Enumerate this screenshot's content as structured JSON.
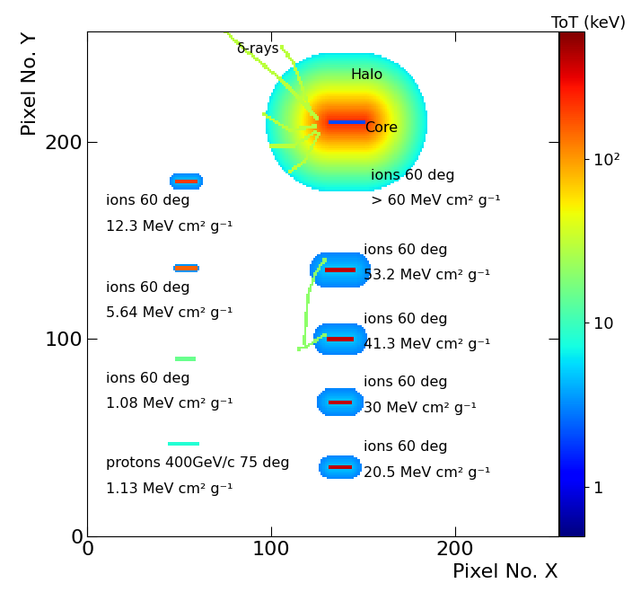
{
  "chart_data": {
    "type": "heatmap",
    "xlabel": "Pixel No. X",
    "ylabel": "Pixel No. Y",
    "colorbar_label": "ToT (keV)",
    "log": true,
    "xlim": [
      0,
      256
    ],
    "ylim": [
      0,
      256
    ],
    "xticks": [
      0,
      100,
      200
    ],
    "yticks": [
      0,
      100,
      200
    ],
    "clim": [
      0.5,
      600
    ],
    "cticks": [
      1,
      10,
      {
        "value": 100,
        "label": "10²"
      }
    ],
    "tracks": [
      {
        "label": [
          "protons 400GeV/c 75 deg",
          "1.13 MeV cm² g⁻¹"
        ],
        "x": [
          45,
          60
        ],
        "y": [
          47,
          47
        ],
        "tot": 8
      },
      {
        "label": [
          "ions 60 deg",
          "1.08 MeV cm² g⁻¹"
        ],
        "x": [
          49,
          58
        ],
        "y": [
          90,
          90
        ],
        "tot": 15
      },
      {
        "label": [
          "ions 60 deg",
          "5.64 MeV cm² g⁻¹"
        ],
        "x": [
          49,
          59
        ],
        "y": [
          136,
          136
        ],
        "tot": 150,
        "halo_radius": 2,
        "halo_tot": [
          5,
          3
        ]
      },
      {
        "label": [
          "ions 60 deg",
          "12.3 MeV cm² g⁻¹"
        ],
        "x": [
          49,
          59
        ],
        "y": [
          180,
          180
        ],
        "tot": 200,
        "halo_radius": 4,
        "halo_tot": [
          5,
          3
        ]
      },
      {
        "label": [
          "ions 60 deg",
          "20.5 MeV cm² g⁻¹"
        ],
        "x": [
          132,
          143
        ],
        "y": [
          35,
          35
        ],
        "tot": 400,
        "halo_radius": 6,
        "halo_tot": [
          5,
          3
        ]
      },
      {
        "label": [
          "ions 60 deg",
          "30 MeV cm² g⁻¹"
        ],
        "x": [
          132,
          143
        ],
        "y": [
          68,
          68
        ],
        "tot": 400,
        "halo_radius": 7,
        "halo_tot": [
          5,
          3
        ]
      },
      {
        "label": [
          "ions 60 deg",
          "41.3 MeV cm² g⁻¹"
        ],
        "x": [
          131,
          144
        ],
        "y": [
          100,
          100
        ],
        "tot": 400,
        "halo_radius": 8,
        "halo_tot": [
          5,
          3
        ],
        "delta_rays": [
          [
            [
              129,
              102
            ],
            [
              124,
              99
            ],
            [
              119,
              96
            ],
            [
              115,
              95
            ]
          ]
        ],
        "delta_tot": 20
      },
      {
        "label": [
          "ions 60 deg",
          "53.2 MeV cm² g⁻¹"
        ],
        "x": [
          130,
          145
        ],
        "y": [
          135,
          135
        ],
        "tot": 400,
        "halo_radius": 9,
        "halo_tot": [
          5,
          3
        ],
        "delta_rays": [
          [
            [
              129,
              140
            ],
            [
              124,
              133
            ],
            [
              120,
              122
            ],
            [
              119,
              110
            ],
            [
              118,
              98
            ]
          ]
        ],
        "delta_tot": 20
      },
      {
        "label": [
          "ions 60 deg",
          "> 60 MeV cm² g⁻¹"
        ],
        "x": [
          132,
          150
        ],
        "y": [
          210,
          210
        ],
        "tot": 2,
        "halo_radius": 35,
        "halo_tot": [
          250,
          6
        ],
        "delta_rays": [
          [
            [
              125,
              212
            ],
            [
              105,
              232
            ],
            [
              88,
              245
            ],
            [
              75,
              256
            ]
          ],
          [
            [
              124,
              208
            ],
            [
              110,
              206
            ],
            [
              96,
              214
            ]
          ],
          [
            [
              124,
              205
            ],
            [
              112,
              198
            ],
            [
              100,
              198
            ]
          ],
          [
            [
              126,
              204
            ],
            [
              118,
              190
            ],
            [
              110,
              185
            ]
          ],
          [
            [
              122,
              214
            ],
            [
              112,
              240
            ],
            [
              106,
              248
            ]
          ]
        ],
        "delta_tot": 30,
        "annotations": {
          "halo": "Halo",
          "core": "Core",
          "delta_rays": "δ-rays"
        }
      }
    ]
  }
}
